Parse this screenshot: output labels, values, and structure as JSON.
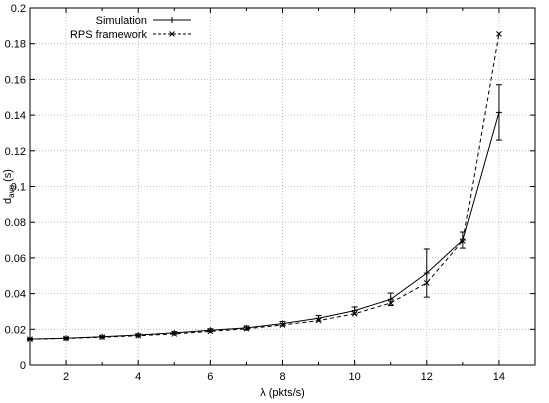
{
  "chart_data": {
    "type": "line",
    "xlabel": "λ (pkts/s)",
    "ylabel_main": "d",
    "ylabel_sub": "avg",
    "ylabel_unit": " (s)",
    "xlim": [
      1,
      15
    ],
    "ylim": [
      0,
      0.2
    ],
    "xticks": [
      2,
      4,
      6,
      8,
      10,
      12,
      14
    ],
    "yticks": [
      0,
      0.02,
      0.04,
      0.06,
      0.08,
      0.1,
      0.12,
      0.14,
      0.16,
      0.18,
      0.2
    ],
    "ytick_labels": [
      "0",
      "0.02",
      "0.04",
      "0.06",
      "0.08",
      "0.1",
      "0.12",
      "0.14",
      "0.16",
      "0.18",
      "0.2"
    ],
    "grid": true,
    "legend_position": "top-left",
    "x": [
      1,
      2,
      3,
      4,
      5,
      6,
      7,
      8,
      9,
      10,
      11,
      12,
      13,
      14
    ],
    "series": [
      {
        "name": "Simulation",
        "style": "solid",
        "marker": "plus",
        "values": [
          0.0145,
          0.015,
          0.0158,
          0.0168,
          0.018,
          0.0195,
          0.0208,
          0.0232,
          0.0262,
          0.0305,
          0.0368,
          0.0515,
          0.07,
          0.1415
        ],
        "error": [
          0.0005,
          0.0005,
          0.0005,
          0.0006,
          0.0007,
          0.0008,
          0.001,
          0.0012,
          0.0015,
          0.002,
          0.0035,
          0.0135,
          0.0045,
          0.0155
        ]
      },
      {
        "name": "RPS framework",
        "style": "dashed",
        "marker": "cross",
        "values": [
          0.0145,
          0.0149,
          0.0156,
          0.0164,
          0.0174,
          0.0188,
          0.0203,
          0.0224,
          0.0249,
          0.0287,
          0.0348,
          0.046,
          0.0695,
          0.1855
        ]
      }
    ],
    "colors": {
      "line": "#000000",
      "grid": "#b0b0b0",
      "background": "#ffffff"
    }
  }
}
